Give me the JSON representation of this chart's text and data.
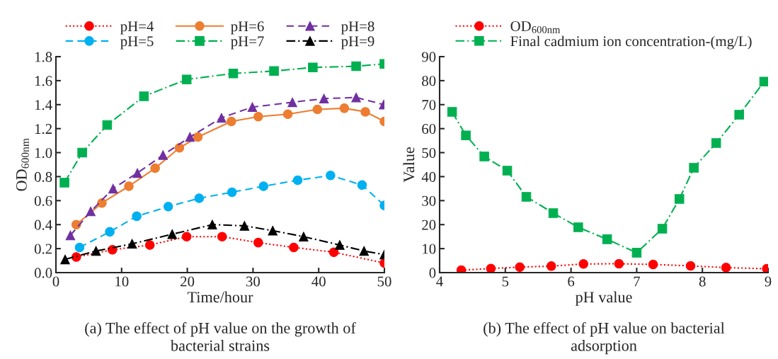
{
  "chart_data": [
    {
      "type": "line",
      "xlabel": "Time/hour",
      "ylabel": "OD$_{600nm}$",
      "xlim": [
        0,
        50
      ],
      "xticks": [
        0,
        10,
        20,
        30,
        40,
        50
      ],
      "ylim": [
        0,
        1.8
      ],
      "yticks": [
        {
          "value": 0,
          "label": "0.0"
        },
        0.2,
        0.4,
        0.6,
        0.8,
        {
          "value": 1,
          "label": "1.0"
        },
        1.2,
        1.4,
        1.6,
        1.8
      ],
      "grid": false,
      "legend": "top",
      "annotations": [
        "(a) The effect of pH value on the growth of\nbacterial strains"
      ],
      "series": [
        {
          "name": "pH=4",
          "color": "#ff0000",
          "marker": "circle",
          "line_style": "dotted",
          "x": [
            3.1,
            8.6,
            14.3,
            19.9,
            25.3,
            30.8,
            36.2,
            42.3,
            50
          ],
          "values": [
            0.13,
            0.19,
            0.23,
            0.3,
            0.3,
            0.25,
            0.21,
            0.17,
            0.08
          ]
        },
        {
          "name": "pH=5",
          "color": "#00b0f0",
          "marker": "circle",
          "line_style": "dashed",
          "x": [
            3.6,
            8.2,
            12.3,
            17.1,
            21.8,
            26.8,
            31.6,
            36.8,
            41.8,
            46.6,
            50
          ],
          "values": [
            0.21,
            0.34,
            0.47,
            0.55,
            0.62,
            0.67,
            0.72,
            0.77,
            0.81,
            0.73,
            0.56
          ]
        },
        {
          "name": "pH=6",
          "color": "#ed7d31",
          "marker": "circle",
          "line_style": "solid",
          "x": [
            3.1,
            7.0,
            11.1,
            15.1,
            18.8,
            21.6,
            26.7,
            30.8,
            35.3,
            39.8,
            43.9,
            47.1,
            50
          ],
          "values": [
            0.4,
            0.58,
            0.72,
            0.87,
            1.04,
            1.13,
            1.26,
            1.3,
            1.32,
            1.36,
            1.37,
            1.34,
            1.26
          ]
        },
        {
          "name": "pH=7",
          "color": "#00b050",
          "marker": "square",
          "line_style": "dashdot",
          "x": [
            1.3,
            4.0,
            7.8,
            13.4,
            19.9,
            27.0,
            33.2,
            39.1,
            45.7,
            50
          ],
          "values": [
            0.75,
            1.0,
            1.23,
            1.47,
            1.61,
            1.66,
            1.68,
            1.71,
            1.72,
            1.74
          ]
        },
        {
          "name": "pH=8",
          "color": "#7030a0",
          "marker": "triangle",
          "line_style": "dashed",
          "x": [
            2.2,
            5.3,
            8.7,
            12.4,
            16.3,
            20.4,
            25.2,
            29.9,
            36.0,
            40.8,
            45.7,
            49.9
          ],
          "values": [
            0.31,
            0.51,
            0.7,
            0.83,
            0.98,
            1.13,
            1.29,
            1.38,
            1.42,
            1.45,
            1.46,
            1.4
          ]
        },
        {
          "name": "pH=9",
          "color": "#000000",
          "marker": "triangle",
          "line_style": "dashdot",
          "x": [
            1.4,
            6.1,
            11.6,
            17.7,
            23.8,
            28.7,
            33.0,
            37.7,
            43.2,
            46.9,
            50
          ],
          "values": [
            0.11,
            0.18,
            0.24,
            0.32,
            0.4,
            0.39,
            0.35,
            0.3,
            0.23,
            0.18,
            0.15
          ]
        }
      ]
    },
    {
      "type": "line",
      "xlabel": "pH value",
      "ylabel": "Value",
      "xlim": [
        4,
        9
      ],
      "xticks": [
        4,
        5,
        6,
        7,
        8,
        9
      ],
      "ylim": [
        0,
        90
      ],
      "yticks": [
        0,
        10,
        20,
        30,
        40,
        50,
        60,
        70,
        80,
        90
      ],
      "grid": false,
      "legend": "top",
      "annotations": [
        "(b) The effect of pH value on bacterial\nadsorption"
      ],
      "series": [
        {
          "name": "OD$_{600nm}$",
          "color": "#ff0000",
          "marker": "circle",
          "line_style": "dotted",
          "x": [
            4.33,
            4.78,
            5.22,
            5.7,
            6.19,
            6.73,
            7.25,
            7.82,
            8.36,
            8.98
          ],
          "values": [
            1.0,
            1.7,
            2.3,
            2.7,
            3.6,
            3.7,
            3.4,
            2.8,
            2.1,
            1.6
          ]
        },
        {
          "name": "Final cadmium ion concentration-(mg/L)",
          "color": "#00b050",
          "marker": "square",
          "line_style": "dashdot",
          "x": [
            4.19,
            4.4,
            4.68,
            5.03,
            5.32,
            5.73,
            6.11,
            6.55,
            7.0,
            7.39,
            7.65,
            7.87,
            8.21,
            8.56,
            8.94
          ],
          "values": [
            67.0,
            57.2,
            48.4,
            42.5,
            31.6,
            24.8,
            18.9,
            13.9,
            8.3,
            18.3,
            30.7,
            43.7,
            54.0,
            65.8,
            79.6
          ]
        }
      ]
    }
  ]
}
